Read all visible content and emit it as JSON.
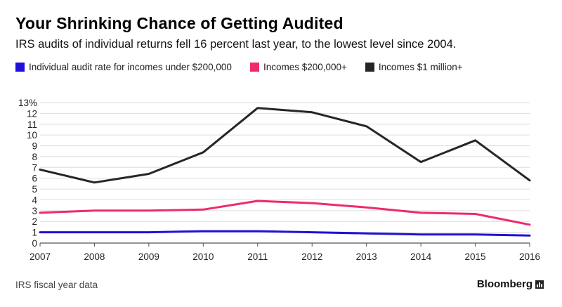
{
  "header": {
    "title": "Your Shrinking Chance of Getting Audited",
    "subtitle": "IRS audits of individual returns fell 16 percent last year, to the lowest level since 2004."
  },
  "footer": {
    "source": "IRS fiscal year data",
    "brand": "Bloomberg",
    "brand_icon": "bloomberg-chart-icon"
  },
  "chart_data": {
    "type": "line",
    "x": [
      2007,
      2008,
      2009,
      2010,
      2011,
      2012,
      2013,
      2014,
      2015,
      2016
    ],
    "series": [
      {
        "name": "Individual audit rate for incomes under $200,000",
        "color": "#1f10d9",
        "values": [
          1.0,
          1.0,
          1.0,
          1.1,
          1.1,
          1.0,
          0.9,
          0.8,
          0.8,
          0.7
        ]
      },
      {
        "name": "Incomes $200,000+",
        "color": "#ee2a6e",
        "values": [
          2.8,
          3.0,
          3.0,
          3.1,
          3.9,
          3.7,
          3.3,
          2.8,
          2.7,
          1.7
        ]
      },
      {
        "name": "Incomes $1 million+",
        "color": "#262626",
        "values": [
          6.8,
          5.6,
          6.4,
          8.4,
          12.5,
          12.1,
          10.8,
          7.5,
          9.5,
          5.8
        ]
      }
    ],
    "ylim": [
      0,
      13
    ],
    "yticks": [
      0,
      1,
      2,
      3,
      4,
      5,
      6,
      7,
      8,
      9,
      10,
      11,
      12,
      13
    ],
    "ytick_labels": [
      "0",
      "1",
      "2",
      "3",
      "4",
      "5",
      "6",
      "7",
      "8",
      "9",
      "10",
      "11",
      "12",
      "13%"
    ],
    "xtick_labels": [
      "2007",
      "2008",
      "2009",
      "2010",
      "2011",
      "2012",
      "2013",
      "2014",
      "2015",
      "2016"
    ],
    "grid": true,
    "legend_position": "top-left"
  }
}
